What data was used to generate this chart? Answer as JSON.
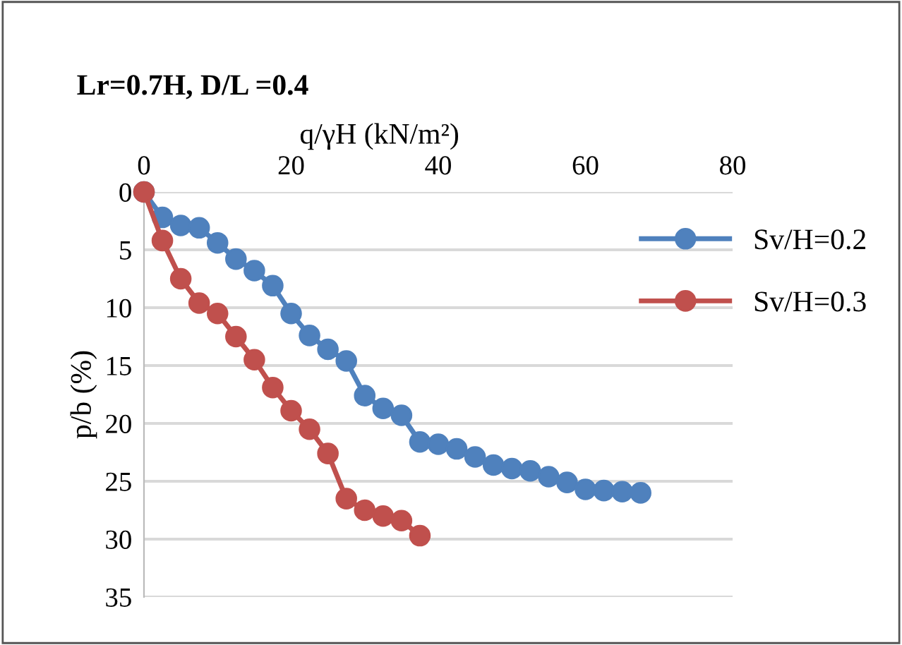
{
  "chart_data": {
    "type": "line",
    "title": "Lr=0.7H, D/L =0.4",
    "xlabel": "q/γH (kN/m²)",
    "ylabel": "p/b (%)",
    "xlim": [
      0,
      80
    ],
    "xticks": [
      0,
      20,
      40,
      60,
      80
    ],
    "ylim": [
      35,
      0
    ],
    "yticks": [
      0,
      5,
      10,
      15,
      20,
      25,
      30,
      35
    ],
    "grid": "y",
    "legend": "right",
    "marker": "circle",
    "line_style": "solid",
    "series": [
      {
        "name": "Sv/H=0.2",
        "color": "#4f81bd",
        "x": [
          0,
          2.5,
          5,
          7.5,
          10,
          12.5,
          15,
          17.5,
          20,
          22.5,
          25,
          27.5,
          30,
          32.5,
          35,
          37.5,
          40,
          42.5,
          45,
          47.5,
          50,
          52.5,
          55,
          57.5,
          60,
          62.5,
          65,
          67.5
        ],
        "values": [
          0,
          2.2,
          2.9,
          3.1,
          4.4,
          5.8,
          6.8,
          8.1,
          10.5,
          12.4,
          13.6,
          14.6,
          17.6,
          18.7,
          19.3,
          21.6,
          21.8,
          22.2,
          22.9,
          23.6,
          23.9,
          24.1,
          24.6,
          25.1,
          25.7,
          25.8,
          25.9,
          26.0
        ]
      },
      {
        "name": "Sv/H=0.3",
        "color": "#c0504d",
        "x": [
          0,
          2.5,
          5,
          7.5,
          10,
          12.5,
          15,
          17.5,
          20,
          22.5,
          25,
          27.5,
          30,
          32.5,
          35,
          37.5
        ],
        "values": [
          0,
          4.2,
          7.5,
          9.6,
          10.5,
          12.5,
          14.5,
          16.9,
          18.9,
          20.5,
          22.6,
          26.5,
          27.5,
          28.0,
          28.4,
          29.7
        ]
      }
    ]
  }
}
